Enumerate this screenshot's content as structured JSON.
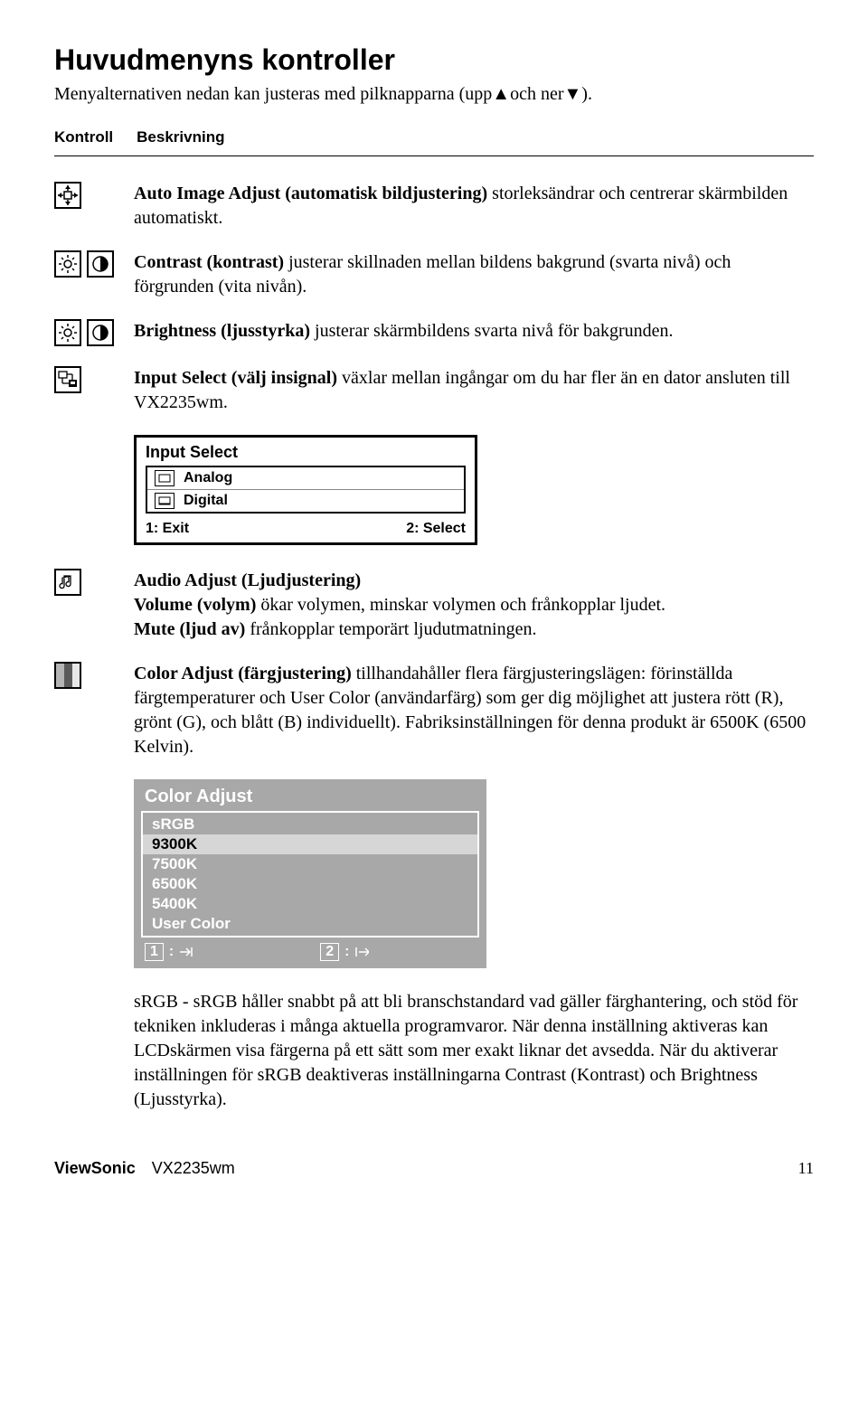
{
  "title": "Huvudmenyns kontroller",
  "subtitle_parts": [
    "Menyalternativen nedan kan justeras med pilknapparna (upp",
    "och ner",
    ")."
  ],
  "header": {
    "col1": "Kontroll",
    "col2": "Beskrivning"
  },
  "rows": {
    "auto_image": {
      "bold": "Auto Image Adjust (automatisk bildjustering)",
      "rest": " storleksändrar och centrerar skärmbilden automatiskt."
    },
    "contrast": {
      "bold": "Contrast (kontrast)",
      "rest": " justerar skillnaden mellan bildens bakgrund (svarta nivå) och förgrunden (vita nivån)."
    },
    "brightness": {
      "bold": "Brightness (ljusstyrka)",
      "rest": " justerar skärmbildens svarta nivå för bakgrunden."
    },
    "input_select": {
      "bold": "Input Select (välj insignal)",
      "rest": " växlar mellan ingångar om du har fler än en dator ansluten till VX2235wm."
    },
    "audio": {
      "title_bold": "Audio Adjust (Ljudjustering)",
      "vol_bold": "Volume (volym)",
      "vol_rest": " ökar volymen, minskar volymen och frånkopplar ljudet.",
      "mute_bold": "Mute (ljud av)",
      "mute_rest": " frånkopplar temporärt ljudutmatningen."
    },
    "color": {
      "bold": "Color Adjust (färgjustering)",
      "rest": " tillhandahåller flera färgjusteringslägen: förinställda färgtemperaturer och User Color (användarfärg) som ger dig möjlighet att justera rött (R), grönt (G), och blått (B) individuellt). Fabriksinställningen för denna produkt är 6500K (6500 Kelvin)."
    },
    "srgb": {
      "bold": "sRGB -",
      "rest": " sRGB håller snabbt på att bli branschstandard vad gäller färghantering, och stöd för tekniken inkluderas i många aktuella programvaror. När denna inställning aktiveras kan LCDskärmen visa färgerna på ett sätt som mer exakt liknar det avsedda. När du aktiverar inställningen för sRGB deaktiveras inställningarna Contrast (Kontrast) och Brightness (Ljusstyrka)."
    }
  },
  "osd_inputselect": {
    "title": "Input Select",
    "items": [
      "Analog",
      "Digital"
    ],
    "foot_left": "1: Exit",
    "foot_right": "2: Select"
  },
  "osd_color": {
    "title": "Color Adjust",
    "items": [
      "sRGB",
      "9300K",
      "7500K",
      "6500K",
      "5400K",
      "User Color"
    ],
    "selected_index": 1,
    "foot_1": "1",
    "foot_2": "2"
  },
  "footer": {
    "brand": "ViewSonic",
    "model": "VX2235wm",
    "page": "11"
  },
  "colors": {
    "grey_panel": "#a8a8a8",
    "selected_bg": "#d6d6d6",
    "coloricon": [
      "#b4b4b4",
      "#5a5a5a",
      "#e6e6e6"
    ]
  }
}
